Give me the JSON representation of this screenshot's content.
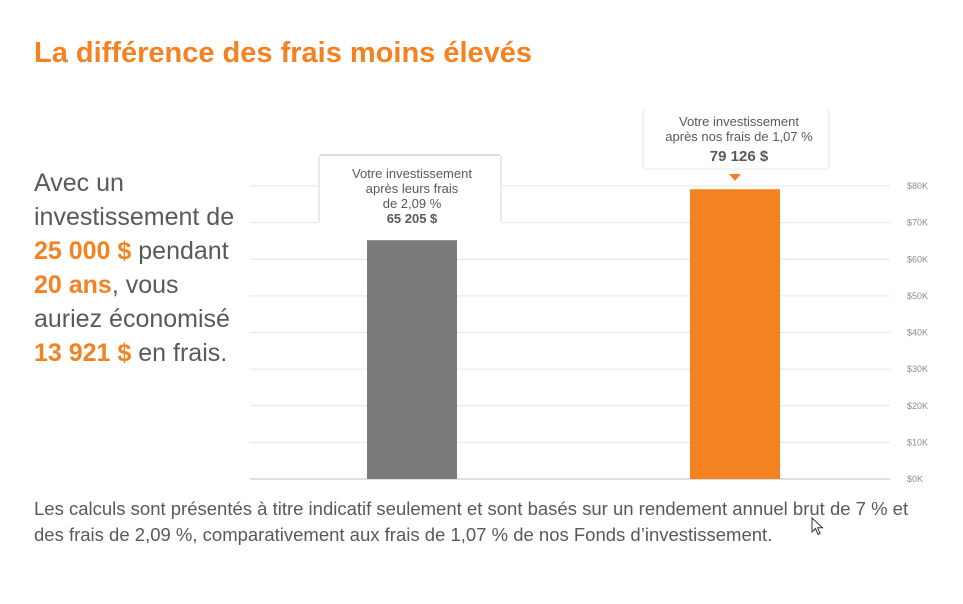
{
  "title": "La différence des frais moins élevés",
  "lead": {
    "p1": "Avec un investissement de ",
    "amount": "25 000 $",
    "p2": " pendant ",
    "duration": "20 ans",
    "p3": ", vous auriez économisé ",
    "savings": "13 921 $",
    "p4": " en frais."
  },
  "note": "Les calculs sont présentés à titre indicatif seulement et sont basés sur un rendement annuel brut de 7 % et des frais de 2,09 %, comparativement aux frais de 1,07 % de nos Fonds d’investissement.",
  "colors": {
    "accent": "#f58220",
    "gray_bar": "#7a7a7a",
    "text": "#595959"
  },
  "chart_data": {
    "type": "bar",
    "categories": [
      "",
      ""
    ],
    "values": [
      65205,
      79126
    ],
    "ylim": [
      0,
      80000
    ],
    "yticks": [
      {
        "value": 0,
        "label": "$0K"
      },
      {
        "value": 10000,
        "label": "$10K"
      },
      {
        "value": 20000,
        "label": "$20K"
      },
      {
        "value": 30000,
        "label": "$30K"
      },
      {
        "value": 40000,
        "label": "$40K"
      },
      {
        "value": 50000,
        "label": "$50K"
      },
      {
        "value": 60000,
        "label": "$60K"
      },
      {
        "value": 70000,
        "label": "$70K"
      },
      {
        "value": 80000,
        "label": "$80K"
      }
    ],
    "bar_colors": [
      "#7a7a7a",
      "#f58220"
    ],
    "callouts": [
      {
        "lines": [
          "Votre investissement",
          "après leurs frais",
          "de 2,09 %"
        ],
        "value": "65 205 $"
      },
      {
        "lines": [
          "Votre investissement",
          "après nos frais de 1,07 %"
        ],
        "value": "79 126 $"
      }
    ],
    "grid": true,
    "axis_side": "right"
  }
}
